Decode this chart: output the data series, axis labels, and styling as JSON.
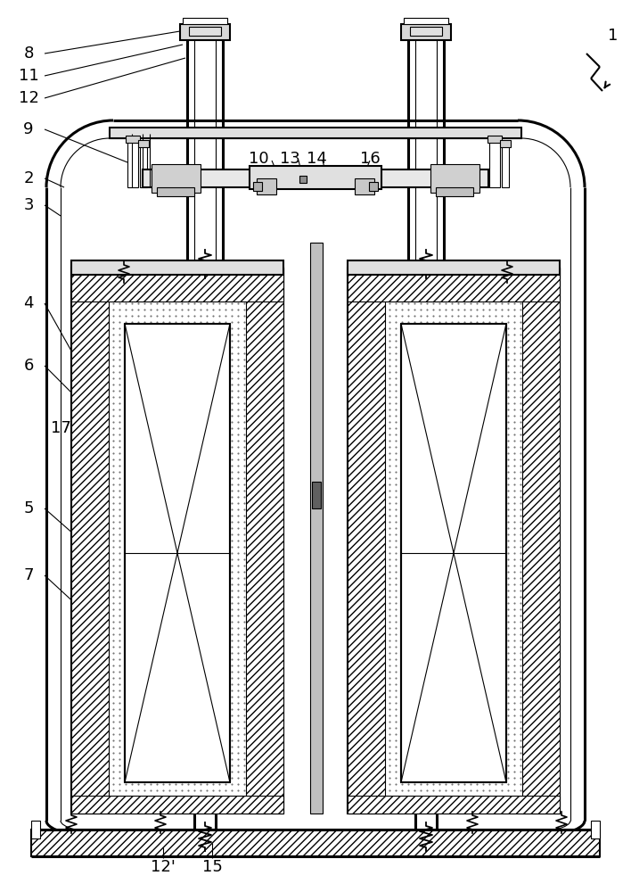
{
  "bg": "#ffffff",
  "lc": "#000000",
  "figsize": [
    7.08,
    10.0
  ],
  "dpi": 100,
  "lw_thick": 2.2,
  "lw_med": 1.5,
  "lw_thin": 0.8
}
